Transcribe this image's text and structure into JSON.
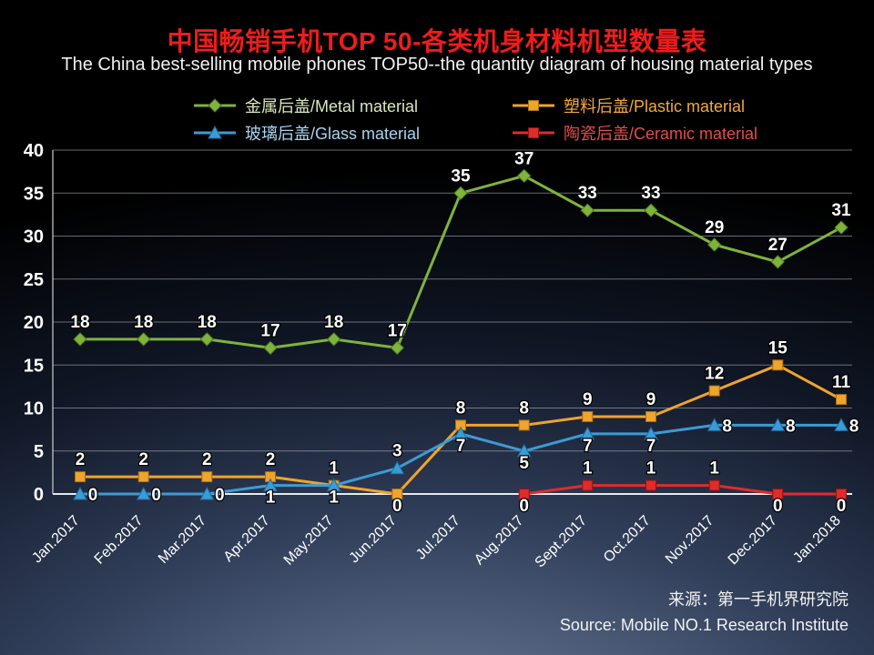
{
  "title": "中国畅销手机TOP 50-各类机身材料机型数量表",
  "subtitle": "The China best-selling mobile phones TOP50--the quantity diagram of housing material types",
  "source": {
    "line1": "来源：第一手机界研究院",
    "line2": "Source: Mobile NO.1 Research Institute"
  },
  "chart_data": {
    "type": "line",
    "title": "中国畅销手机TOP 50-各类机身材料机型数量表",
    "xlabel": "",
    "ylabel": "",
    "ylim": [
      0,
      40
    ],
    "ytick_step": 5,
    "grid": true,
    "legend_position": "top",
    "categories": [
      "Jan.2017",
      "Feb.2017",
      "Mar.2017",
      "Apr.2017",
      "May.2017",
      "Jun.2017",
      "Jul.2017",
      "Aug.2017",
      "Sept.2017",
      "Oct.2017",
      "Nov.2017",
      "Dec.2017",
      "Jan.2018"
    ],
    "series": [
      {
        "id": "metal",
        "name": "金属后盖/Metal material",
        "marker": "diamond",
        "color": "#7FB33C",
        "edge": "#4e7a1f",
        "text_color": "#d7e8bc",
        "values": [
          18,
          18,
          18,
          17,
          18,
          17,
          35,
          37,
          33,
          33,
          29,
          27,
          31
        ],
        "label_pos": [
          "above",
          "above",
          "above",
          "above",
          "above",
          "above",
          "above",
          "above",
          "above",
          "above",
          "above",
          "above",
          "above"
        ]
      },
      {
        "id": "plastic",
        "name": "塑料后盖/Plastic material",
        "marker": "square",
        "color": "#EFA42C",
        "edge": "#a8700f",
        "text_color": "#f2a93b",
        "values": [
          2,
          2,
          2,
          2,
          1,
          0,
          8,
          8,
          9,
          9,
          12,
          15,
          11
        ],
        "label_pos": [
          "above",
          "above",
          "above",
          "above",
          "above",
          "below",
          "above",
          "above",
          "above",
          "above",
          "above",
          "above",
          "above"
        ]
      },
      {
        "id": "glass",
        "name": "玻璃后盖/Glass material",
        "marker": "triangle",
        "color": "#3D9BD4",
        "edge": "#1b6fa8",
        "text_color": "#a9d3ef",
        "values": [
          0,
          0,
          0,
          1,
          1,
          3,
          7,
          5,
          7,
          7,
          8,
          8,
          8
        ],
        "label_pos": [
          "right",
          "right",
          "right",
          "below",
          "below",
          "above",
          "below",
          "below",
          "below",
          "below",
          "right",
          "right",
          "right"
        ]
      },
      {
        "id": "ceramic",
        "name": "陶瓷后盖/Ceramic material",
        "marker": "square",
        "color": "#E02B2B",
        "edge": "#8f1414",
        "text_color": "#e54b4b",
        "values": [
          null,
          null,
          null,
          null,
          null,
          null,
          null,
          0,
          1,
          1,
          1,
          0,
          0
        ],
        "label_pos": [
          "below",
          "below",
          "below",
          "below",
          "below",
          "below",
          "below",
          "below",
          "above",
          "above",
          "above",
          "below",
          "below"
        ]
      }
    ]
  }
}
